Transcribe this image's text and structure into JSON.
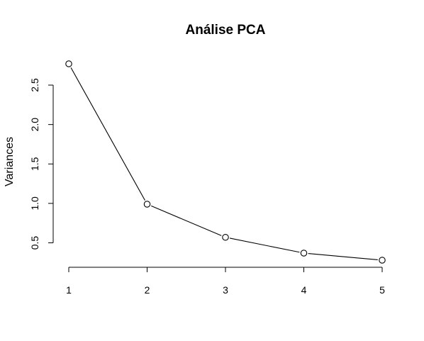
{
  "chart_data": {
    "type": "line",
    "title": "Análise PCA",
    "xlabel": "",
    "ylabel": "Variances",
    "x": [
      1,
      2,
      3,
      4,
      5
    ],
    "x_ticks": [
      "1",
      "2",
      "3",
      "4",
      "5"
    ],
    "y_ticks": [
      "0.5",
      "1.0",
      "1.5",
      "2.0",
      "2.5"
    ],
    "y_tick_values": [
      0.5,
      1.0,
      1.5,
      2.0,
      2.5
    ],
    "series": [
      {
        "values": [
          2.77,
          0.99,
          0.57,
          0.37,
          0.28
        ]
      }
    ],
    "marker": "open-circle",
    "grid": false,
    "legend": "none",
    "xlim": [
      1,
      5
    ],
    "ylim": [
      0.28,
      2.77
    ],
    "colors": {
      "line": "#000000",
      "marker_fill": "#ffffff"
    }
  }
}
